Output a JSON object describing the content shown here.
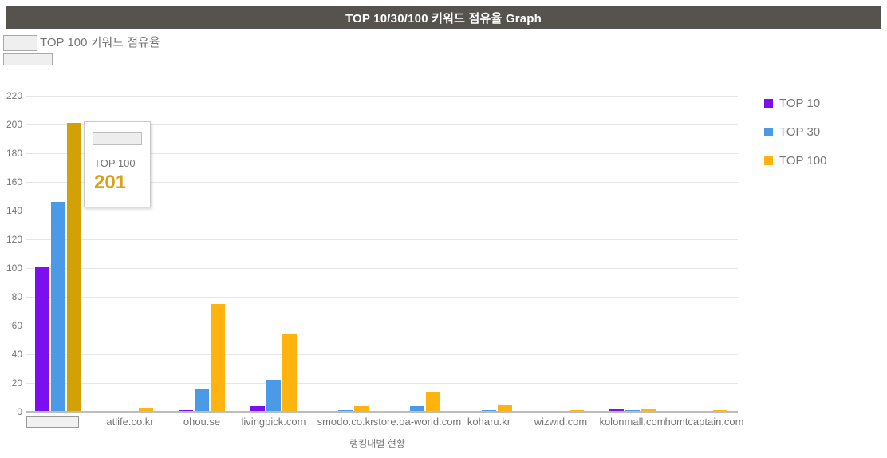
{
  "header": {
    "title": "TOP 10/30/100 키워드 점유율 Graph",
    "bg_color": "#56524E"
  },
  "subheader": {
    "label": "TOP 100 키워드 점유율",
    "masked_site_name": true
  },
  "legend": {
    "position": "right",
    "items": [
      {
        "label": "TOP 10",
        "color": "#7C0FF0"
      },
      {
        "label": "TOP 30",
        "color": "#4A9AE8"
      },
      {
        "label": "TOP 100",
        "color": "#FFB30F"
      }
    ]
  },
  "tooltip": {
    "series": "TOP 100",
    "value": "201",
    "value_color": "#D9A118",
    "masked_site_name": true
  },
  "chart_data": {
    "type": "bar",
    "title": "TOP 10/30/100 키워드 점유율 Graph",
    "xlabel": "랭킹대별 현황",
    "ylabel": "",
    "ylim": [
      0,
      220
    ],
    "ytick_step": 20,
    "grid": true,
    "legend_position": "right",
    "categories": [
      "",
      "atlife.co.kr",
      "ohou.se",
      "livingpick.com",
      "smodo.co.kr",
      "store.oa-world.com",
      "koharu.kr",
      "wizwid.com",
      "kolonmall.com",
      "homtcaptain.com"
    ],
    "first_category_masked": true,
    "series": [
      {
        "name": "TOP 10",
        "color": "#7C0FF0",
        "values": [
          101,
          0,
          1,
          4,
          0,
          0,
          0,
          0,
          2,
          0
        ]
      },
      {
        "name": "TOP 30",
        "color": "#4A9AE8",
        "values": [
          146,
          0,
          16,
          22,
          1,
          4,
          1,
          0,
          1,
          0
        ]
      },
      {
        "name": "TOP 100",
        "color": "#FFB30F",
        "values": [
          201,
          3,
          75,
          54,
          4,
          14,
          5,
          1,
          2,
          1
        ]
      }
    ],
    "highlighted_bar": {
      "category_index": 0,
      "series": "TOP 100",
      "value": 201,
      "color": "#D2A106"
    }
  }
}
